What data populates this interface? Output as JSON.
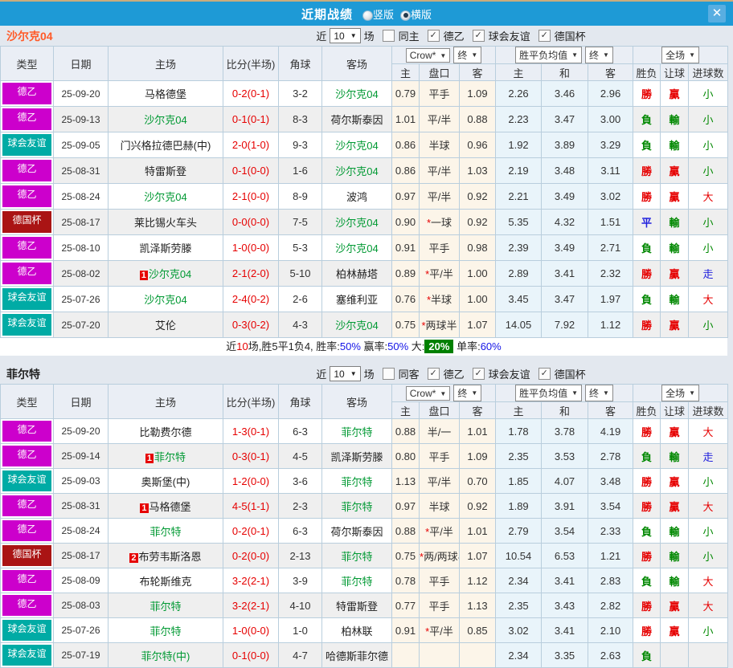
{
  "colors": {
    "titlebar_bg": "#1e9ad6",
    "close_btn_bg": "#58aee1",
    "win_red": "#e60000",
    "lose_green": "#008800",
    "draw_blue": "#2020dd",
    "team_green": "#009933",
    "score_red": "#e60000",
    "summary_rate_blue": "#1414e6",
    "summary_big_bg": "#008000",
    "odds_col_bg": "#fcf5e9",
    "avg_col_bg": "#e9f4fa",
    "league_colors": {
      "德乙": "#cc00cc",
      "球会友谊": "#00aba5",
      "德国杯": "#aa1414"
    }
  },
  "result_color_map": {
    "勝": "c-win",
    "負": "c-lose",
    "平": "c-draw",
    "贏": "c-win",
    "輸": "c-lose",
    "大": "c-win",
    "小": "c-lose",
    "走": "c-draw"
  },
  "titlebar": {
    "title": "近期战绩",
    "radios": [
      {
        "label": "竖版",
        "selected": false
      },
      {
        "label": "横版",
        "selected": true
      }
    ],
    "close_glyph": "✕"
  },
  "table_header": {
    "static_cols": [
      "类型",
      "日期",
      "主场",
      "比分(半场)",
      "角球",
      "客场"
    ],
    "crow_group": {
      "select1": "Crow*",
      "select2": "终",
      "subs": [
        "主",
        "盘口",
        "客"
      ]
    },
    "avg_group": {
      "select1": "胜平负均值",
      "select2": "终",
      "subs": [
        "主",
        "和",
        "客"
      ]
    },
    "full_group": {
      "select": "全场",
      "subs": [
        "胜负",
        "让球",
        "进球数"
      ]
    }
  },
  "sections": [
    {
      "team": "沙尔克04",
      "team_color": "#ff5a28",
      "filter": {
        "prefix": "近",
        "count": "10",
        "suffix": "场",
        "checkboxes": [
          {
            "label": "同主",
            "checked": false
          },
          {
            "label": "德乙",
            "checked": true
          },
          {
            "label": "球会友谊",
            "checked": true
          },
          {
            "label": "德国杯",
            "checked": true
          }
        ]
      },
      "rows": [
        {
          "type": "德乙",
          "date": "25-09-20",
          "home": "马格德堡",
          "home_green": false,
          "home_badge": "",
          "score": "0-2(0-1)",
          "corner": "3-2",
          "away": "沙尔克04",
          "away_green": true,
          "odds_home": "0.79",
          "handicap": "平手",
          "odds_away": "1.09",
          "avg_home": "2.26",
          "avg_draw": "3.46",
          "avg_away": "2.96",
          "res": "勝",
          "let": "贏",
          "goal": "小"
        },
        {
          "type": "德乙",
          "date": "25-09-13",
          "home": "沙尔克04",
          "home_green": true,
          "home_badge": "",
          "score": "0-1(0-1)",
          "corner": "8-3",
          "away": "荷尔斯泰因",
          "away_green": false,
          "odds_home": "1.01",
          "handicap": "平/半",
          "odds_away": "0.88",
          "avg_home": "2.23",
          "avg_draw": "3.47",
          "avg_away": "3.00",
          "res": "負",
          "let": "輸",
          "goal": "小"
        },
        {
          "type": "球会友谊",
          "date": "25-09-05",
          "home": "门兴格拉德巴赫(中)",
          "home_green": false,
          "home_badge": "",
          "score": "2-0(1-0)",
          "corner": "9-3",
          "away": "沙尔克04",
          "away_green": true,
          "odds_home": "0.86",
          "handicap": "半球",
          "odds_away": "0.96",
          "avg_home": "1.92",
          "avg_draw": "3.89",
          "avg_away": "3.29",
          "res": "負",
          "let": "輸",
          "goal": "小"
        },
        {
          "type": "德乙",
          "date": "25-08-31",
          "home": "特雷斯登",
          "home_green": false,
          "home_badge": "",
          "score": "0-1(0-0)",
          "corner": "1-6",
          "away": "沙尔克04",
          "away_green": true,
          "odds_home": "0.86",
          "handicap": "平/半",
          "odds_away": "1.03",
          "avg_home": "2.19",
          "avg_draw": "3.48",
          "avg_away": "3.11",
          "res": "勝",
          "let": "贏",
          "goal": "小"
        },
        {
          "type": "德乙",
          "date": "25-08-24",
          "home": "沙尔克04",
          "home_green": true,
          "home_badge": "",
          "score": "2-1(0-0)",
          "corner": "8-9",
          "away": "波鸿",
          "away_green": false,
          "odds_home": "0.97",
          "handicap": "平/半",
          "odds_away": "0.92",
          "avg_home": "2.21",
          "avg_draw": "3.49",
          "avg_away": "3.02",
          "res": "勝",
          "let": "贏",
          "goal": "大"
        },
        {
          "type": "德国杯",
          "date": "25-08-17",
          "home": "莱比锡火车头",
          "home_green": false,
          "home_badge": "",
          "score": "0-0(0-0)",
          "corner": "7-5",
          "away": "沙尔克04",
          "away_green": true,
          "odds_home": "0.90",
          "handicap": "*一球",
          "odds_away": "0.92",
          "avg_home": "5.35",
          "avg_draw": "4.32",
          "avg_away": "1.51",
          "res": "平",
          "let": "輸",
          "goal": "小"
        },
        {
          "type": "德乙",
          "date": "25-08-10",
          "home": "凯泽斯劳滕",
          "home_green": false,
          "home_badge": "",
          "score": "1-0(0-0)",
          "corner": "5-3",
          "away": "沙尔克04",
          "away_green": true,
          "odds_home": "0.91",
          "handicap": "平手",
          "odds_away": "0.98",
          "avg_home": "2.39",
          "avg_draw": "3.49",
          "avg_away": "2.71",
          "res": "負",
          "let": "輸",
          "goal": "小"
        },
        {
          "type": "德乙",
          "date": "25-08-02",
          "home": "沙尔克04",
          "home_green": true,
          "home_badge": "1",
          "score": "2-1(2-0)",
          "corner": "5-10",
          "away": "柏林赫塔",
          "away_green": false,
          "odds_home": "0.89",
          "handicap": "*平/半",
          "odds_away": "1.00",
          "avg_home": "2.89",
          "avg_draw": "3.41",
          "avg_away": "2.32",
          "res": "勝",
          "let": "贏",
          "goal": "走"
        },
        {
          "type": "球会友谊",
          "date": "25-07-26",
          "home": "沙尔克04",
          "home_green": true,
          "home_badge": "",
          "score": "2-4(0-2)",
          "corner": "2-6",
          "away": "塞维利亚",
          "away_green": false,
          "odds_home": "0.76",
          "handicap": "*半球",
          "odds_away": "1.00",
          "avg_home": "3.45",
          "avg_draw": "3.47",
          "avg_away": "1.97",
          "res": "負",
          "let": "輸",
          "goal": "大"
        },
        {
          "type": "球会友谊",
          "date": "25-07-20",
          "home": "艾伦",
          "home_green": false,
          "home_badge": "",
          "score": "0-3(0-2)",
          "corner": "4-3",
          "away": "沙尔克04",
          "away_green": true,
          "odds_home": "0.75",
          "handicap": "*两球半",
          "odds_away": "1.07",
          "avg_home": "14.05",
          "avg_draw": "7.92",
          "avg_away": "1.12",
          "res": "勝",
          "let": "贏",
          "goal": "小"
        }
      ],
      "summary": [
        {
          "text": "近",
          "style": "plain"
        },
        {
          "text": "10",
          "style": "red"
        },
        {
          "text": "场,胜5平1负4, 胜率:",
          "style": "plain"
        },
        {
          "text": "50%",
          "style": "blue"
        },
        {
          "text": " 赢率:",
          "style": "plain"
        },
        {
          "text": "50%",
          "style": "blue"
        },
        {
          "text": " 大:",
          "style": "plain"
        },
        {
          "text": "20%",
          "style": "greenbox"
        },
        {
          "text": " 单率:",
          "style": "plain"
        },
        {
          "text": "60%",
          "style": "blue"
        }
      ]
    },
    {
      "team": "菲尔特",
      "team_color": "#222222",
      "filter": {
        "prefix": "近",
        "count": "10",
        "suffix": "场",
        "checkboxes": [
          {
            "label": "同客",
            "checked": false
          },
          {
            "label": "德乙",
            "checked": true
          },
          {
            "label": "球会友谊",
            "checked": true
          },
          {
            "label": "德国杯",
            "checked": true
          }
        ]
      },
      "rows": [
        {
          "type": "德乙",
          "date": "25-09-20",
          "home": "比勒费尔德",
          "home_green": false,
          "home_badge": "",
          "score": "1-3(0-1)",
          "corner": "6-3",
          "away": "菲尔特",
          "away_green": true,
          "odds_home": "0.88",
          "handicap": "半/一",
          "odds_away": "1.01",
          "avg_home": "1.78",
          "avg_draw": "3.78",
          "avg_away": "4.19",
          "res": "勝",
          "let": "贏",
          "goal": "大"
        },
        {
          "type": "德乙",
          "date": "25-09-14",
          "home": "菲尔特",
          "home_green": true,
          "home_badge": "1",
          "score": "0-3(0-1)",
          "corner": "4-5",
          "away": "凯泽斯劳滕",
          "away_green": false,
          "odds_home": "0.80",
          "handicap": "平手",
          "odds_away": "1.09",
          "avg_home": "2.35",
          "avg_draw": "3.53",
          "avg_away": "2.78",
          "res": "負",
          "let": "輸",
          "goal": "走"
        },
        {
          "type": "球会友谊",
          "date": "25-09-03",
          "home": "奥斯堡(中)",
          "home_green": false,
          "home_badge": "",
          "score": "1-2(0-0)",
          "corner": "3-6",
          "away": "菲尔特",
          "away_green": true,
          "odds_home": "1.13",
          "handicap": "平/半",
          "odds_away": "0.70",
          "avg_home": "1.85",
          "avg_draw": "4.07",
          "avg_away": "3.48",
          "res": "勝",
          "let": "贏",
          "goal": "小"
        },
        {
          "type": "德乙",
          "date": "25-08-31",
          "home": "马格德堡",
          "home_green": false,
          "home_badge": "1",
          "score": "4-5(1-1)",
          "corner": "2-3",
          "away": "菲尔特",
          "away_green": true,
          "odds_home": "0.97",
          "handicap": "半球",
          "odds_away": "0.92",
          "avg_home": "1.89",
          "avg_draw": "3.91",
          "avg_away": "3.54",
          "res": "勝",
          "let": "贏",
          "goal": "大"
        },
        {
          "type": "德乙",
          "date": "25-08-24",
          "home": "菲尔特",
          "home_green": true,
          "home_badge": "",
          "score": "0-2(0-1)",
          "corner": "6-3",
          "away": "荷尔斯泰因",
          "away_green": false,
          "odds_home": "0.88",
          "handicap": "*平/半",
          "odds_away": "1.01",
          "avg_home": "2.79",
          "avg_draw": "3.54",
          "avg_away": "2.33",
          "res": "負",
          "let": "輸",
          "goal": "小"
        },
        {
          "type": "德国杯",
          "date": "25-08-17",
          "home": "布劳韦斯洛恩",
          "home_green": false,
          "home_badge": "2",
          "score": "0-2(0-0)",
          "corner": "2-13",
          "away": "菲尔特",
          "away_green": true,
          "odds_home": "0.75",
          "handicap": "*两/两球半",
          "odds_away": "1.07",
          "avg_home": "10.54",
          "avg_draw": "6.53",
          "avg_away": "1.21",
          "res": "勝",
          "let": "輸",
          "goal": "小"
        },
        {
          "type": "德乙",
          "date": "25-08-09",
          "home": "布轮斯维克",
          "home_green": false,
          "home_badge": "",
          "score": "3-2(2-1)",
          "corner": "3-9",
          "away": "菲尔特",
          "away_green": true,
          "odds_home": "0.78",
          "handicap": "平手",
          "odds_away": "1.12",
          "avg_home": "2.34",
          "avg_draw": "3.41",
          "avg_away": "2.83",
          "res": "負",
          "let": "輸",
          "goal": "大"
        },
        {
          "type": "德乙",
          "date": "25-08-03",
          "home": "菲尔特",
          "home_green": true,
          "home_badge": "",
          "score": "3-2(2-1)",
          "corner": "4-10",
          "away": "特雷斯登",
          "away_green": false,
          "odds_home": "0.77",
          "handicap": "平手",
          "odds_away": "1.13",
          "avg_home": "2.35",
          "avg_draw": "3.43",
          "avg_away": "2.82",
          "res": "勝",
          "let": "贏",
          "goal": "大"
        },
        {
          "type": "球会友谊",
          "date": "25-07-26",
          "home": "菲尔特",
          "home_green": true,
          "home_badge": "",
          "score": "1-0(0-0)",
          "corner": "1-0",
          "away": "柏林联",
          "away_green": false,
          "odds_home": "0.91",
          "handicap": "*平/半",
          "odds_away": "0.85",
          "avg_home": "3.02",
          "avg_draw": "3.41",
          "avg_away": "2.10",
          "res": "勝",
          "let": "贏",
          "goal": "小"
        },
        {
          "type": "球会友谊",
          "date": "25-07-19",
          "home": "菲尔特(中)",
          "home_green": true,
          "home_badge": "",
          "score": "0-1(0-0)",
          "corner": "4-7",
          "away": "哈德斯菲尔德",
          "away_green": false,
          "odds_home": "",
          "handicap": "",
          "odds_away": "",
          "avg_home": "2.34",
          "avg_draw": "3.35",
          "avg_away": "2.63",
          "res": "負",
          "let": "",
          "goal": ""
        }
      ],
      "summary": []
    }
  ]
}
